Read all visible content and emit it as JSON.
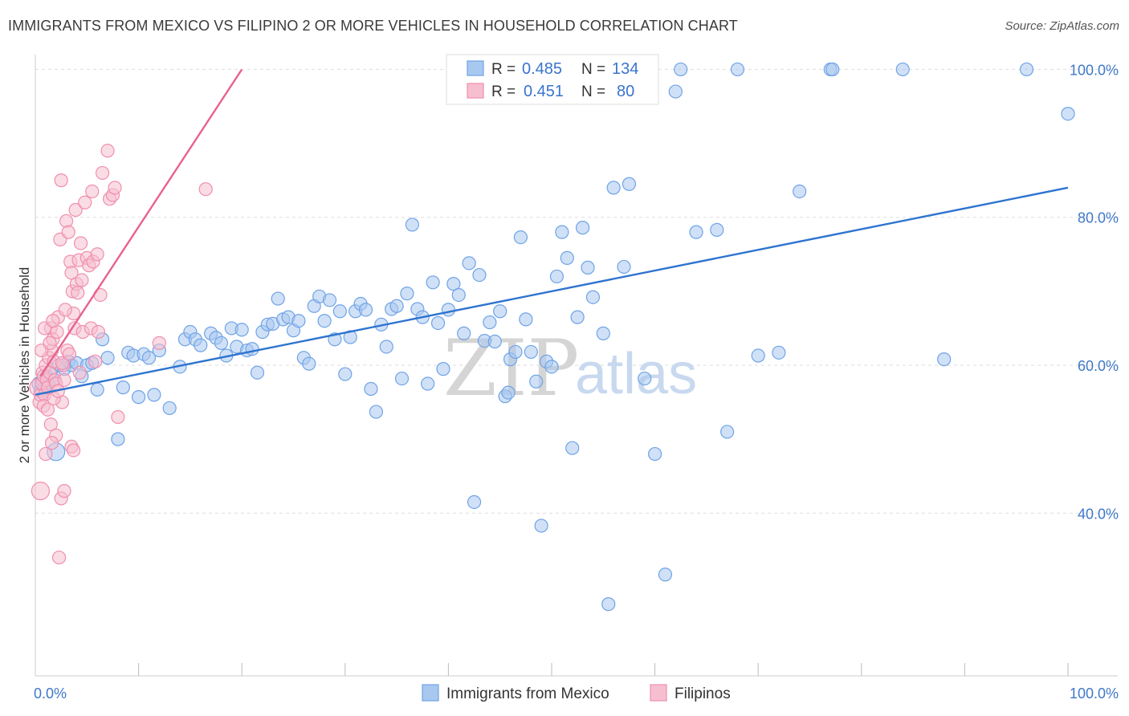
{
  "title": "IMMIGRANTS FROM MEXICO VS FILIPINO 2 OR MORE VEHICLES IN HOUSEHOLD CORRELATION CHART",
  "source": "Source: ZipAtlas.com",
  "watermark": {
    "part1": "ZIP",
    "part2": "atlas"
  },
  "colors": {
    "blue": "#6fa3e6",
    "blue_fill": "#a9c8f0",
    "blue_line": "#2e74d0",
    "pink": "#ef8fae",
    "pink_fill": "#f6bfd0",
    "pink_line": "#e8628f",
    "grid": "#dddddd",
    "tick_text": "#3f78c8"
  },
  "legend": {
    "rows": [
      {
        "r_label": "R =",
        "r_value": "0.485",
        "n_label": "N =",
        "n_value": "134"
      },
      {
        "r_label": "R =",
        "r_value": "0.451",
        "n_label": "N =",
        "n_value": "80"
      }
    ]
  },
  "bottom_legend": [
    "Immigrants from Mexico",
    "Filipinos"
  ],
  "chart_data": {
    "type": "scatter",
    "title": "IMMIGRANTS FROM MEXICO VS FILIPINO 2 OR MORE VEHICLES IN HOUSEHOLD CORRELATION CHART",
    "xlabel": "",
    "ylabel": "2 or more Vehicles in Household",
    "xlim": [
      0,
      100
    ],
    "ylim": [
      18,
      102
    ],
    "x_tick_labels": [
      "0.0%",
      "100.0%"
    ],
    "y_ticks": [
      40,
      60,
      80,
      100
    ],
    "y_tick_labels": [
      "40.0%",
      "60.0%",
      "80.0%",
      "100.0%"
    ],
    "grid": true,
    "legend_position": "top-center",
    "series": [
      {
        "name": "Immigrants from Mexico",
        "color": "#6fa3e6",
        "r": 0.485,
        "n": 134,
        "trend": {
          "x": [
            0,
            100
          ],
          "y": [
            56.0,
            84.0
          ]
        },
        "points": [
          [
            0.3,
            57.5
          ],
          [
            0.5,
            56.5
          ],
          [
            0.7,
            58
          ],
          [
            0.9,
            57
          ],
          [
            1.1,
            58.5
          ],
          [
            1.3,
            57.5
          ],
          [
            1.5,
            59
          ],
          [
            1.8,
            58
          ],
          [
            2.0,
            48.3
          ],
          [
            2.3,
            60
          ],
          [
            2.8,
            59.5
          ],
          [
            3.2,
            60.5
          ],
          [
            3.5,
            60
          ],
          [
            4.0,
            60.3
          ],
          [
            4.5,
            58.5
          ],
          [
            5.0,
            60
          ],
          [
            5.5,
            60.3
          ],
          [
            6.0,
            56.7
          ],
          [
            6.5,
            63.5
          ],
          [
            7.0,
            61
          ],
          [
            8.0,
            50
          ],
          [
            8.5,
            57
          ],
          [
            9.0,
            61.7
          ],
          [
            9.5,
            61.3
          ],
          [
            10.0,
            55.7
          ],
          [
            10.5,
            61.5
          ],
          [
            11.0,
            61
          ],
          [
            11.5,
            56
          ],
          [
            12.0,
            62
          ],
          [
            13.0,
            54.2
          ],
          [
            14.0,
            59.8
          ],
          [
            14.5,
            63.5
          ],
          [
            15.0,
            64.5
          ],
          [
            15.5,
            63.5
          ],
          [
            16.0,
            62.7
          ],
          [
            17.0,
            64.3
          ],
          [
            17.5,
            63.7
          ],
          [
            18.0,
            63
          ],
          [
            18.5,
            61.3
          ],
          [
            19.0,
            65
          ],
          [
            19.5,
            62.5
          ],
          [
            20.0,
            64.8
          ],
          [
            20.5,
            62
          ],
          [
            21.0,
            62.2
          ],
          [
            21.5,
            59
          ],
          [
            22.0,
            64.5
          ],
          [
            22.5,
            65.5
          ],
          [
            23.0,
            65.6
          ],
          [
            23.5,
            69
          ],
          [
            24.0,
            66.2
          ],
          [
            24.5,
            66.5
          ],
          [
            25.0,
            64.7
          ],
          [
            25.5,
            66
          ],
          [
            26.0,
            61
          ],
          [
            26.5,
            60.2
          ],
          [
            27.0,
            68
          ],
          [
            27.5,
            69.3
          ],
          [
            28.0,
            66
          ],
          [
            28.5,
            68.8
          ],
          [
            29.0,
            63.5
          ],
          [
            29.5,
            67.3
          ],
          [
            30.0,
            58.8
          ],
          [
            30.5,
            63.8
          ],
          [
            31.0,
            67.3
          ],
          [
            31.5,
            68.3
          ],
          [
            32.0,
            67.5
          ],
          [
            32.5,
            56.8
          ],
          [
            33.0,
            53.7
          ],
          [
            33.5,
            65.5
          ],
          [
            34.0,
            62.5
          ],
          [
            34.5,
            67.6
          ],
          [
            35.0,
            68
          ],
          [
            35.5,
            58.2
          ],
          [
            36.0,
            69.7
          ],
          [
            36.5,
            79
          ],
          [
            37.0,
            67.6
          ],
          [
            37.5,
            66.5
          ],
          [
            38.0,
            57.5
          ],
          [
            38.5,
            71.2
          ],
          [
            39.0,
            65.7
          ],
          [
            39.5,
            59.5
          ],
          [
            40.0,
            67.5
          ],
          [
            40.5,
            71
          ],
          [
            41.0,
            69.5
          ],
          [
            41.5,
            64.3
          ],
          [
            42.0,
            73.8
          ],
          [
            42.5,
            41.5
          ],
          [
            43.0,
            72.2
          ],
          [
            43.5,
            63.3
          ],
          [
            44.0,
            65.8
          ],
          [
            44.5,
            63.2
          ],
          [
            45.0,
            67.3
          ],
          [
            45.5,
            55.8
          ],
          [
            45.8,
            56.3
          ],
          [
            46.0,
            60.8
          ],
          [
            46.5,
            61.8
          ],
          [
            47.0,
            77.3
          ],
          [
            47.5,
            66.2
          ],
          [
            48.0,
            61.8
          ],
          [
            48.5,
            57.8
          ],
          [
            49.0,
            38.3
          ],
          [
            49.5,
            60.5
          ],
          [
            50.0,
            59.8
          ],
          [
            50.5,
            72
          ],
          [
            51.0,
            78
          ],
          [
            51.5,
            74.5
          ],
          [
            52.0,
            48.8
          ],
          [
            52.5,
            66.5
          ],
          [
            53.0,
            78.6
          ],
          [
            53.5,
            73.2
          ],
          [
            54.0,
            69.2
          ],
          [
            55.0,
            64.3
          ],
          [
            55.5,
            27.7
          ],
          [
            56.0,
            84
          ],
          [
            57.0,
            73.3
          ],
          [
            57.5,
            84.5
          ],
          [
            58.0,
            100
          ],
          [
            59.0,
            58.2
          ],
          [
            60.0,
            48
          ],
          [
            61.0,
            31.7
          ],
          [
            62.0,
            97
          ],
          [
            62.5,
            100
          ],
          [
            64.0,
            78
          ],
          [
            66.0,
            78.3
          ],
          [
            67.0,
            51
          ],
          [
            68.0,
            100
          ],
          [
            70.0,
            61.3
          ],
          [
            72.0,
            61.7
          ],
          [
            74.0,
            83.5
          ],
          [
            77.0,
            100
          ],
          [
            77.2,
            100
          ],
          [
            84.0,
            100
          ],
          [
            88.0,
            60.8
          ],
          [
            96.0,
            100
          ],
          [
            100.0,
            94
          ]
        ]
      },
      {
        "name": "Filipinos",
        "color": "#ef8fae",
        "r": 0.451,
        "n": 80,
        "trend": {
          "x": [
            0.5,
            20
          ],
          "y": [
            58.5,
            100
          ]
        },
        "points": [
          [
            0.3,
            57
          ],
          [
            0.4,
            55
          ],
          [
            0.5,
            56
          ],
          [
            0.6,
            57.5
          ],
          [
            0.7,
            59
          ],
          [
            0.8,
            58.5
          ],
          [
            0.9,
            56
          ],
          [
            1.0,
            60
          ],
          [
            1.1,
            58
          ],
          [
            1.2,
            57
          ],
          [
            1.3,
            61
          ],
          [
            1.4,
            59
          ],
          [
            1.5,
            65
          ],
          [
            1.6,
            62
          ],
          [
            1.7,
            63.5
          ],
          [
            1.8,
            60.5
          ],
          [
            1.9,
            58
          ],
          [
            2.0,
            57.5
          ],
          [
            2.1,
            64.5
          ],
          [
            2.2,
            66.5
          ],
          [
            2.4,
            77
          ],
          [
            2.5,
            85
          ],
          [
            2.6,
            55
          ],
          [
            2.7,
            60
          ],
          [
            2.8,
            58
          ],
          [
            3.0,
            79.5
          ],
          [
            3.2,
            78
          ],
          [
            3.4,
            74
          ],
          [
            3.5,
            72.5
          ],
          [
            3.6,
            70
          ],
          [
            3.7,
            67
          ],
          [
            3.8,
            65
          ],
          [
            3.9,
            81
          ],
          [
            4.0,
            71
          ],
          [
            4.1,
            69.8
          ],
          [
            4.2,
            74.2
          ],
          [
            4.4,
            76.5
          ],
          [
            4.5,
            71.5
          ],
          [
            4.6,
            64.5
          ],
          [
            4.8,
            82
          ],
          [
            5.0,
            74.5
          ],
          [
            5.2,
            73.5
          ],
          [
            5.4,
            65
          ],
          [
            5.5,
            83.5
          ],
          [
            5.6,
            74
          ],
          [
            5.8,
            60.5
          ],
          [
            6.0,
            75
          ],
          [
            6.1,
            64.5
          ],
          [
            6.3,
            69.5
          ],
          [
            6.5,
            86
          ],
          [
            7.0,
            89
          ],
          [
            7.2,
            82.5
          ],
          [
            7.5,
            83
          ],
          [
            7.7,
            84
          ],
          [
            8.0,
            53
          ],
          [
            0.5,
            43
          ],
          [
            1.5,
            52
          ],
          [
            2.5,
            42
          ],
          [
            2.8,
            43
          ],
          [
            2.3,
            34
          ],
          [
            1.0,
            48
          ],
          [
            2.0,
            50.5
          ],
          [
            3.5,
            49
          ],
          [
            3.7,
            48.5
          ],
          [
            1.6,
            49.5
          ],
          [
            0.8,
            54.5
          ],
          [
            1.2,
            54
          ],
          [
            1.8,
            55.5
          ],
          [
            2.2,
            56.5
          ],
          [
            0.6,
            62
          ],
          [
            1.4,
            63
          ],
          [
            2.6,
            60.3
          ],
          [
            3.1,
            62
          ],
          [
            3.3,
            61.5
          ],
          [
            4.3,
            59
          ],
          [
            12.0,
            63
          ],
          [
            16.5,
            83.8
          ],
          [
            0.9,
            65
          ],
          [
            1.7,
            66
          ],
          [
            2.9,
            67.5
          ]
        ]
      }
    ]
  }
}
